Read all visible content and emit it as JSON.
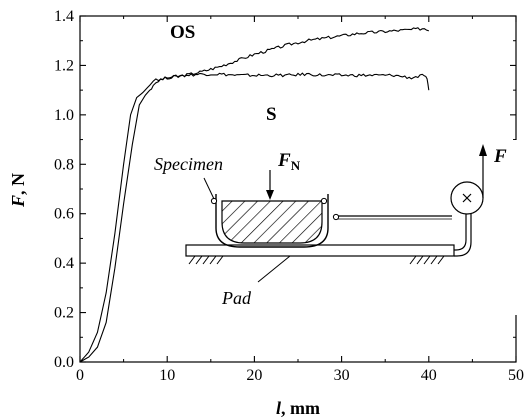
{
  "chart_data": {
    "type": "line",
    "title": "",
    "xlabel": {
      "main": "l",
      "unit": ", mm"
    },
    "ylabel": {
      "main": "F",
      "unit": ", N"
    },
    "xlim": [
      0,
      50
    ],
    "ylim": [
      0,
      1.4
    ],
    "xticks": [
      "0",
      "10",
      "20",
      "30",
      "40",
      "50"
    ],
    "yticks": [
      "0.0",
      "0.2",
      "0.4",
      "0.6",
      "0.8",
      "1.0",
      "1.2",
      "1.4"
    ],
    "grid": false,
    "series": [
      {
        "name": "OS",
        "x": [
          0,
          1,
          2,
          3,
          4,
          5,
          5.8,
          6.5,
          7.2,
          8.0,
          8.4,
          9.0,
          10,
          11,
          12,
          14,
          16,
          18,
          20,
          22,
          24,
          26,
          28,
          30,
          32,
          34,
          36,
          38,
          39.5,
          40
        ],
        "y": [
          0.0,
          0.04,
          0.12,
          0.28,
          0.52,
          0.8,
          1.0,
          1.07,
          1.09,
          1.12,
          1.14,
          1.14,
          1.15,
          1.155,
          1.16,
          1.175,
          1.195,
          1.22,
          1.245,
          1.265,
          1.285,
          1.3,
          1.31,
          1.32,
          1.33,
          1.335,
          1.34,
          1.345,
          1.35,
          1.34
        ]
      },
      {
        "name": "S",
        "x": [
          0,
          1,
          2,
          3,
          4,
          5,
          6,
          6.8,
          7.5,
          8.0,
          8.4,
          9,
          10,
          12,
          14,
          16,
          18,
          20,
          22,
          24,
          26,
          28,
          30,
          32,
          34,
          36,
          38,
          39.5,
          39.8,
          40
        ],
        "y": [
          0.0,
          0.02,
          0.06,
          0.16,
          0.38,
          0.64,
          0.88,
          1.04,
          1.08,
          1.1,
          1.12,
          1.14,
          1.15,
          1.16,
          1.165,
          1.165,
          1.16,
          1.16,
          1.16,
          1.16,
          1.165,
          1.16,
          1.16,
          1.16,
          1.16,
          1.16,
          1.15,
          1.16,
          1.14,
          1.1
        ]
      }
    ],
    "annotations": {
      "os_label": "OS",
      "s_label": "S",
      "specimen": "Specimen",
      "pad": "Pad",
      "normal_force": {
        "main": "F",
        "sub": "N"
      },
      "pull_force": "F"
    }
  }
}
